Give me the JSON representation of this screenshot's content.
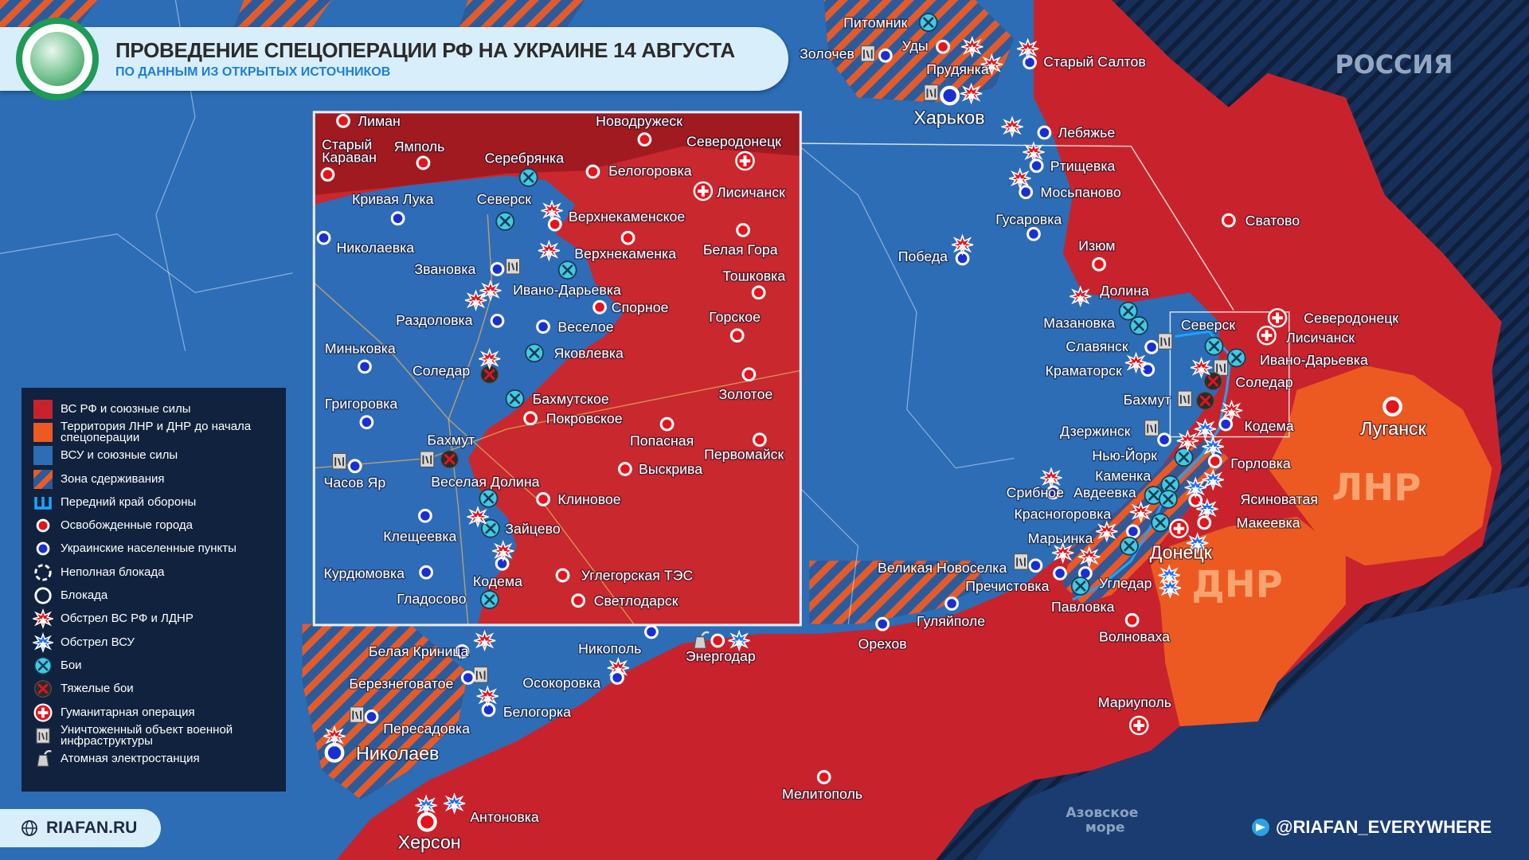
{
  "header": {
    "title": "ПРОВЕДЕНИЕ СПЕЦОПЕРАЦИИ РФ НА УКРАИНЕ 14 АВГУСТА",
    "subtitle": "ПО ДАННЫМ ИЗ ОТКРЫТЫХ ИСТОЧНИКОВ",
    "logo_icon": "globe-europe-icon"
  },
  "colors": {
    "rf_forces": "#c8232c",
    "lnr_dnr_territory": "#ec5a22",
    "afu_forces": "#2c6db6",
    "russia": "#16294b",
    "title_text": "#2b2b2b",
    "subtitle_text": "#1d7fd3"
  },
  "regions": {
    "russia": "РОССИЯ",
    "lnr": "ЛНР",
    "dnr": "ДНР",
    "azov_sea_line1": "Азовское",
    "azov_sea_line2": "море"
  },
  "legend": [
    {
      "label": "ВС РФ и союзные силы",
      "icon": "swatch-red"
    },
    {
      "label": "Территория ЛНР и ДНР до начала спецоперации",
      "icon": "swatch-orange"
    },
    {
      "label": "ВСУ и союзные силы",
      "icon": "swatch-blue"
    },
    {
      "label": "Зона сдерживания",
      "icon": "hatch"
    },
    {
      "label": "Передний край обороны",
      "icon": "frontline"
    },
    {
      "label": "Освобожденные города",
      "icon": "red"
    },
    {
      "label": "Украинские населенные пункты",
      "icon": "blue"
    },
    {
      "label": "Неполная блокада",
      "icon": "partial-blockade"
    },
    {
      "label": "Блокада",
      "icon": "blockade"
    },
    {
      "label": "Обстрел ВС РФ и ЛДНР",
      "icon": "strike-rf"
    },
    {
      "label": "Обстрел ВСУ",
      "icon": "strike-ua"
    },
    {
      "label": "Бои",
      "icon": "fight"
    },
    {
      "label": "Тяжелые бои",
      "icon": "heavy"
    },
    {
      "label": "Гуманитарная операция",
      "icon": "hum"
    },
    {
      "label": "Уничтоженный объект военной инфраструктуры",
      "icon": "destroyed"
    },
    {
      "label": "Атомная электростанция",
      "icon": "npp"
    }
  ],
  "main_places": [
    {
      "name": "Питомник",
      "markers": [
        "fight"
      ]
    },
    {
      "name": "Уды",
      "markers": [
        "red"
      ]
    },
    {
      "name": "Золочев",
      "markers": [
        "destroyed",
        "blue"
      ]
    },
    {
      "name": "Прудянка",
      "markers": [
        "strike-rf",
        "strike-rf"
      ]
    },
    {
      "name": "Старый Салтов",
      "markers": [
        "blue",
        "strike-rf"
      ]
    },
    {
      "name": "Харьков",
      "markers": [
        "blue",
        "destroyed",
        "strike-rf"
      ]
    },
    {
      "name": "Лебяжье",
      "markers": [
        "blue",
        "strike-rf"
      ]
    },
    {
      "name": "Ртищевка",
      "markers": [
        "blue",
        "strike-rf"
      ]
    },
    {
      "name": "Мосьпаново",
      "markers": [
        "blue",
        "strike-rf"
      ]
    },
    {
      "name": "Гусаровка",
      "markers": [
        "blue"
      ]
    },
    {
      "name": "Победа",
      "markers": [
        "blue",
        "strike-rf"
      ]
    },
    {
      "name": "Сватово",
      "markers": [
        "red"
      ]
    },
    {
      "name": "Изюм",
      "markers": [
        "red"
      ]
    },
    {
      "name": "Долина",
      "markers": [
        "strike-rf"
      ]
    },
    {
      "name": "Мазановка",
      "markers": [
        "fight",
        "fight"
      ]
    },
    {
      "name": "Славянск",
      "markers": [
        "blue",
        "destroyed"
      ]
    },
    {
      "name": "Краматорск",
      "markers": [
        "blue",
        "strike-rf"
      ]
    },
    {
      "name": "Бахмут",
      "markers": [
        "destroyed",
        "heavy"
      ]
    },
    {
      "name": "Северск",
      "markers": []
    },
    {
      "name": "Северодонецк",
      "markers": [
        "hum"
      ]
    },
    {
      "name": "Лисичанск",
      "markers": [
        "hum"
      ]
    },
    {
      "name": "Ивано-Дарьевка",
      "markers": [
        "fight",
        "fight",
        "destroyed"
      ]
    },
    {
      "name": "Соледар",
      "markers": [
        "heavy",
        "strike-rf"
      ]
    },
    {
      "name": "Кодема",
      "markers": [
        "blue",
        "strike-rf"
      ]
    },
    {
      "name": "Дзержинск",
      "markers": [
        "destroyed",
        "blue"
      ]
    },
    {
      "name": "Нью-Йорк",
      "markers": [
        "fight",
        "strike-rf"
      ]
    },
    {
      "name": "Горловка",
      "markers": [
        "red",
        "strike-ua",
        "strike-ua"
      ]
    },
    {
      "name": "Каменка",
      "markers": [
        "fight"
      ]
    },
    {
      "name": "Авдеевка",
      "markers": [
        "fight",
        "fight",
        "strike-ua"
      ]
    },
    {
      "name": "Срибное",
      "markers": [
        "blue",
        "strike-rf"
      ]
    },
    {
      "name": "Ясиноватая",
      "markers": [
        "red",
        "strike-ua"
      ]
    },
    {
      "name": "Красногоровка",
      "markers": [
        "blue",
        "strike-rf"
      ]
    },
    {
      "name": "Макеевка",
      "markers": [
        "red",
        "hum",
        "fight",
        "strike-ua",
        "strike-ua"
      ]
    },
    {
      "name": "Марьинка",
      "markers": [
        "fight",
        "strike-rf"
      ]
    },
    {
      "name": "Донецк",
      "markers": []
    },
    {
      "name": "Великая Новоселка",
      "markers": [
        "destroyed",
        "blue",
        "strike-rf"
      ]
    },
    {
      "name": "Пречистовка",
      "markers": [
        "blue",
        "blue",
        "strike-rf"
      ]
    },
    {
      "name": "Угледар",
      "markers": [
        "strike-ua",
        "strike-ua"
      ]
    },
    {
      "name": "Павловка",
      "markers": [
        "fight"
      ]
    },
    {
      "name": "Гуляйполе",
      "markers": [
        "blue"
      ]
    },
    {
      "name": "Орехов",
      "markers": [
        "blue"
      ]
    },
    {
      "name": "Волноваха",
      "markers": [
        "red"
      ]
    },
    {
      "name": "Мариуполь",
      "markers": [
        "hum"
      ]
    },
    {
      "name": "Мелитополь",
      "markers": [
        "red"
      ]
    },
    {
      "name": "Луганск",
      "markers": [
        "red"
      ]
    },
    {
      "name": "Энергодар",
      "markers": [
        "npp",
        "red",
        "strike-ua"
      ]
    },
    {
      "name": "Никополь",
      "markers": [
        "blue"
      ]
    },
    {
      "name": "Белая Криница",
      "markers": [
        "blue",
        "strike-rf"
      ]
    },
    {
      "name": "Березнеговатое",
      "markers": [
        "destroyed",
        "blue"
      ]
    },
    {
      "name": "Осокоровка",
      "markers": [
        "strike-rf",
        "blue"
      ]
    },
    {
      "name": "Белогорка",
      "markers": [
        "blue",
        "strike-rf"
      ]
    },
    {
      "name": "Пересадовка",
      "markers": [
        "destroyed",
        "blue"
      ]
    },
    {
      "name": "Николаев",
      "markers": [
        "blue",
        "strike-rf"
      ]
    },
    {
      "name": "Антоновка",
      "markers": [
        "strike-ua"
      ]
    },
    {
      "name": "Херсон",
      "markers": [
        "red",
        "strike-ua"
      ]
    }
  ],
  "inset_places": [
    {
      "name": "Лиман",
      "markers": [
        "red"
      ]
    },
    {
      "name": "Старый Караван",
      "markers": [
        "red"
      ]
    },
    {
      "name": "Ямполь",
      "markers": [
        "red"
      ]
    },
    {
      "name": "Новодружеск",
      "markers": [
        "red"
      ]
    },
    {
      "name": "Северодонецк",
      "markers": [
        "hum"
      ]
    },
    {
      "name": "Серебрянка",
      "markers": [
        "fight"
      ]
    },
    {
      "name": "Белогоровка",
      "markers": [
        "red"
      ]
    },
    {
      "name": "Лисичанск",
      "markers": [
        "hum"
      ]
    },
    {
      "name": "Кривая Лука",
      "markers": [
        "blue"
      ]
    },
    {
      "name": "Северск",
      "markers": [
        "fight"
      ]
    },
    {
      "name": "Верхнекаменское",
      "markers": [
        "red",
        "strike-rf"
      ]
    },
    {
      "name": "Николаевка",
      "markers": [
        "blue"
      ]
    },
    {
      "name": "Верхнекаменка",
      "markers": [
        "red",
        "strike-rf",
        "fight"
      ]
    },
    {
      "name": "Белая Гора",
      "markers": [
        "red"
      ]
    },
    {
      "name": "Звановка",
      "markers": [
        "blue",
        "destroyed"
      ]
    },
    {
      "name": "Ивано-Дарьевка",
      "markers": [
        "strike-rf",
        "strike-rf"
      ]
    },
    {
      "name": "Тошковка",
      "markers": [
        "red"
      ]
    },
    {
      "name": "Спорное",
      "markers": [
        "red"
      ]
    },
    {
      "name": "Раздоловка",
      "markers": [
        "blue"
      ]
    },
    {
      "name": "Веселое",
      "markers": [
        "blue"
      ]
    },
    {
      "name": "Горское",
      "markers": [
        "red"
      ]
    },
    {
      "name": "Миньковка",
      "markers": [
        "blue"
      ]
    },
    {
      "name": "Яковлевка",
      "markers": [
        "fight"
      ]
    },
    {
      "name": "Соледар",
      "markers": [
        "heavy",
        "strike-rf"
      ]
    },
    {
      "name": "Золотое",
      "markers": [
        "red"
      ]
    },
    {
      "name": "Бахмутское",
      "markers": [
        "fight"
      ]
    },
    {
      "name": "Покровское",
      "markers": [
        "red"
      ]
    },
    {
      "name": "Григоровка",
      "markers": [
        "blue"
      ]
    },
    {
      "name": "Попасная",
      "markers": [
        "red"
      ]
    },
    {
      "name": "Первомайск",
      "markers": [
        "red"
      ]
    },
    {
      "name": "Бахмут",
      "markers": [
        "heavy",
        "destroyed"
      ]
    },
    {
      "name": "Часов Яр",
      "markers": [
        "blue",
        "destroyed"
      ]
    },
    {
      "name": "Выскрива",
      "markers": [
        "red"
      ]
    },
    {
      "name": "Веселая Долина",
      "markers": [
        "fight"
      ]
    },
    {
      "name": "Клиновое",
      "markers": [
        "red"
      ]
    },
    {
      "name": "Клещеевка",
      "markers": [
        "blue"
      ]
    },
    {
      "name": "Зайцево",
      "markers": [
        "fight",
        "strike-rf"
      ]
    },
    {
      "name": "Курдюмовка",
      "markers": [
        "blue"
      ]
    },
    {
      "name": "Кодема",
      "markers": [
        "blue",
        "strike-rf"
      ]
    },
    {
      "name": "Углегорская ТЭС",
      "markers": [
        "red"
      ]
    },
    {
      "name": "Гладосово",
      "markers": [
        "fight"
      ]
    },
    {
      "name": "Светлодарск",
      "markers": [
        "red"
      ]
    }
  ],
  "footer": {
    "site": "RIAFAN.RU",
    "site_icon": "globe-icon",
    "telegram": "@RIAFAN_EVERYWHERE",
    "telegram_icon": "telegram-icon"
  }
}
